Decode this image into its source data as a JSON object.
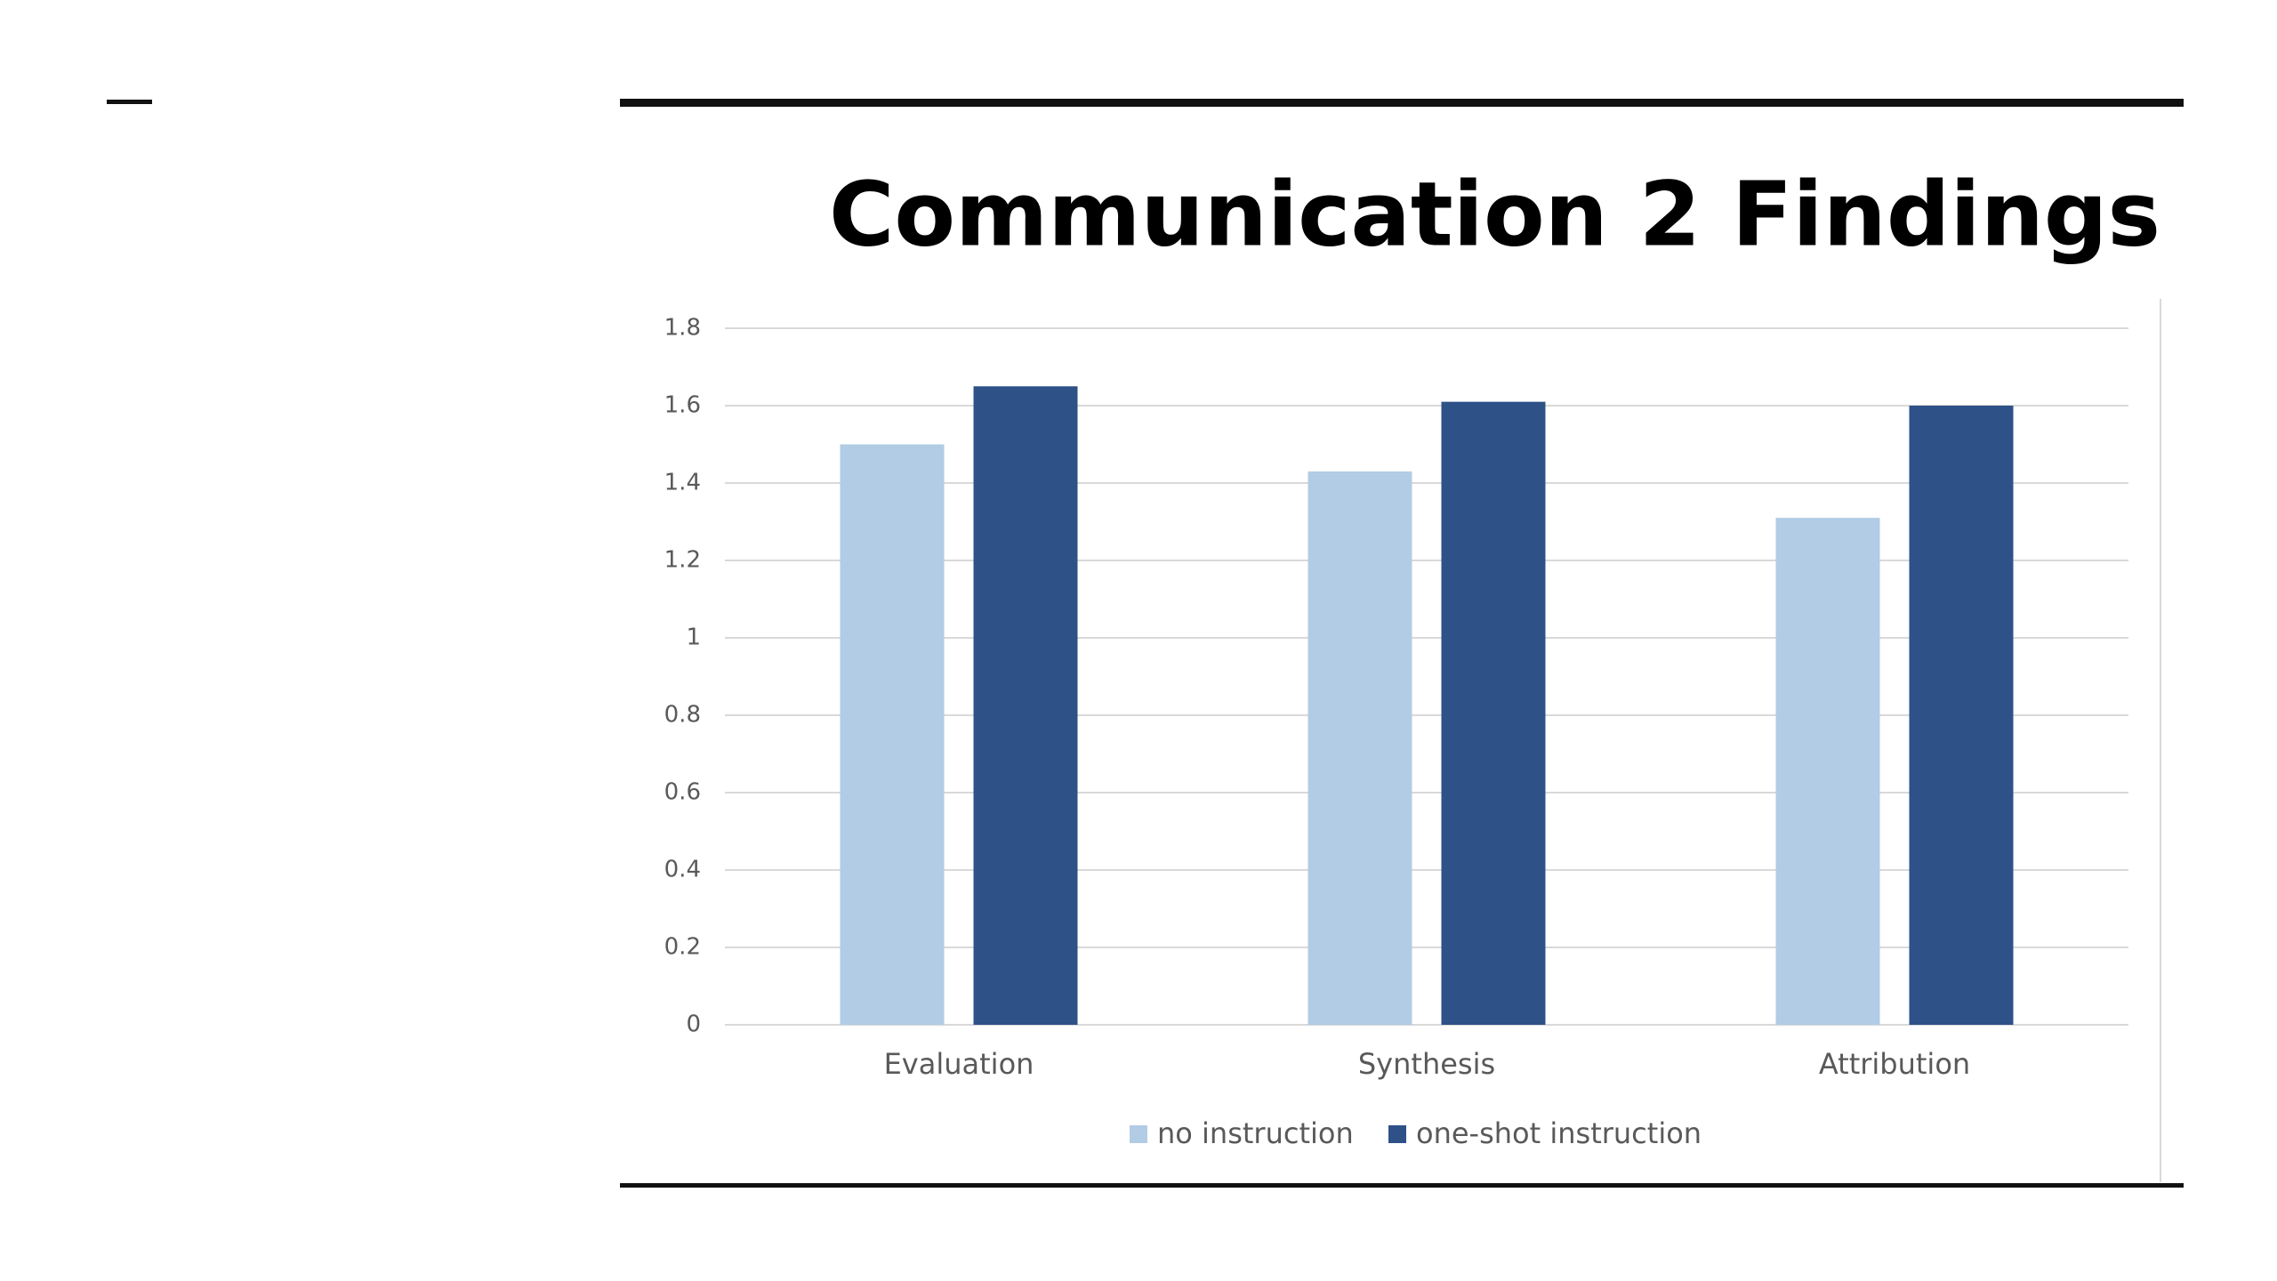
{
  "chart_data": {
    "type": "bar",
    "title": "Communication 2 Findings",
    "categories": [
      "Evaluation",
      "Synthesis",
      "Attribution"
    ],
    "series": [
      {
        "name": "no instruction",
        "color": "#b1cce4",
        "values": [
          1.5,
          1.43,
          1.31
        ]
      },
      {
        "name": "one-shot instruction",
        "color": "#2e5188",
        "values": [
          1.65,
          1.61,
          1.6
        ]
      }
    ],
    "ylim": [
      0,
      1.8
    ],
    "yticks": [
      0,
      0.2,
      0.4,
      0.6,
      0.8,
      1,
      1.2,
      1.4,
      1.6,
      1.8
    ],
    "grid": true,
    "legend": "bottom"
  }
}
